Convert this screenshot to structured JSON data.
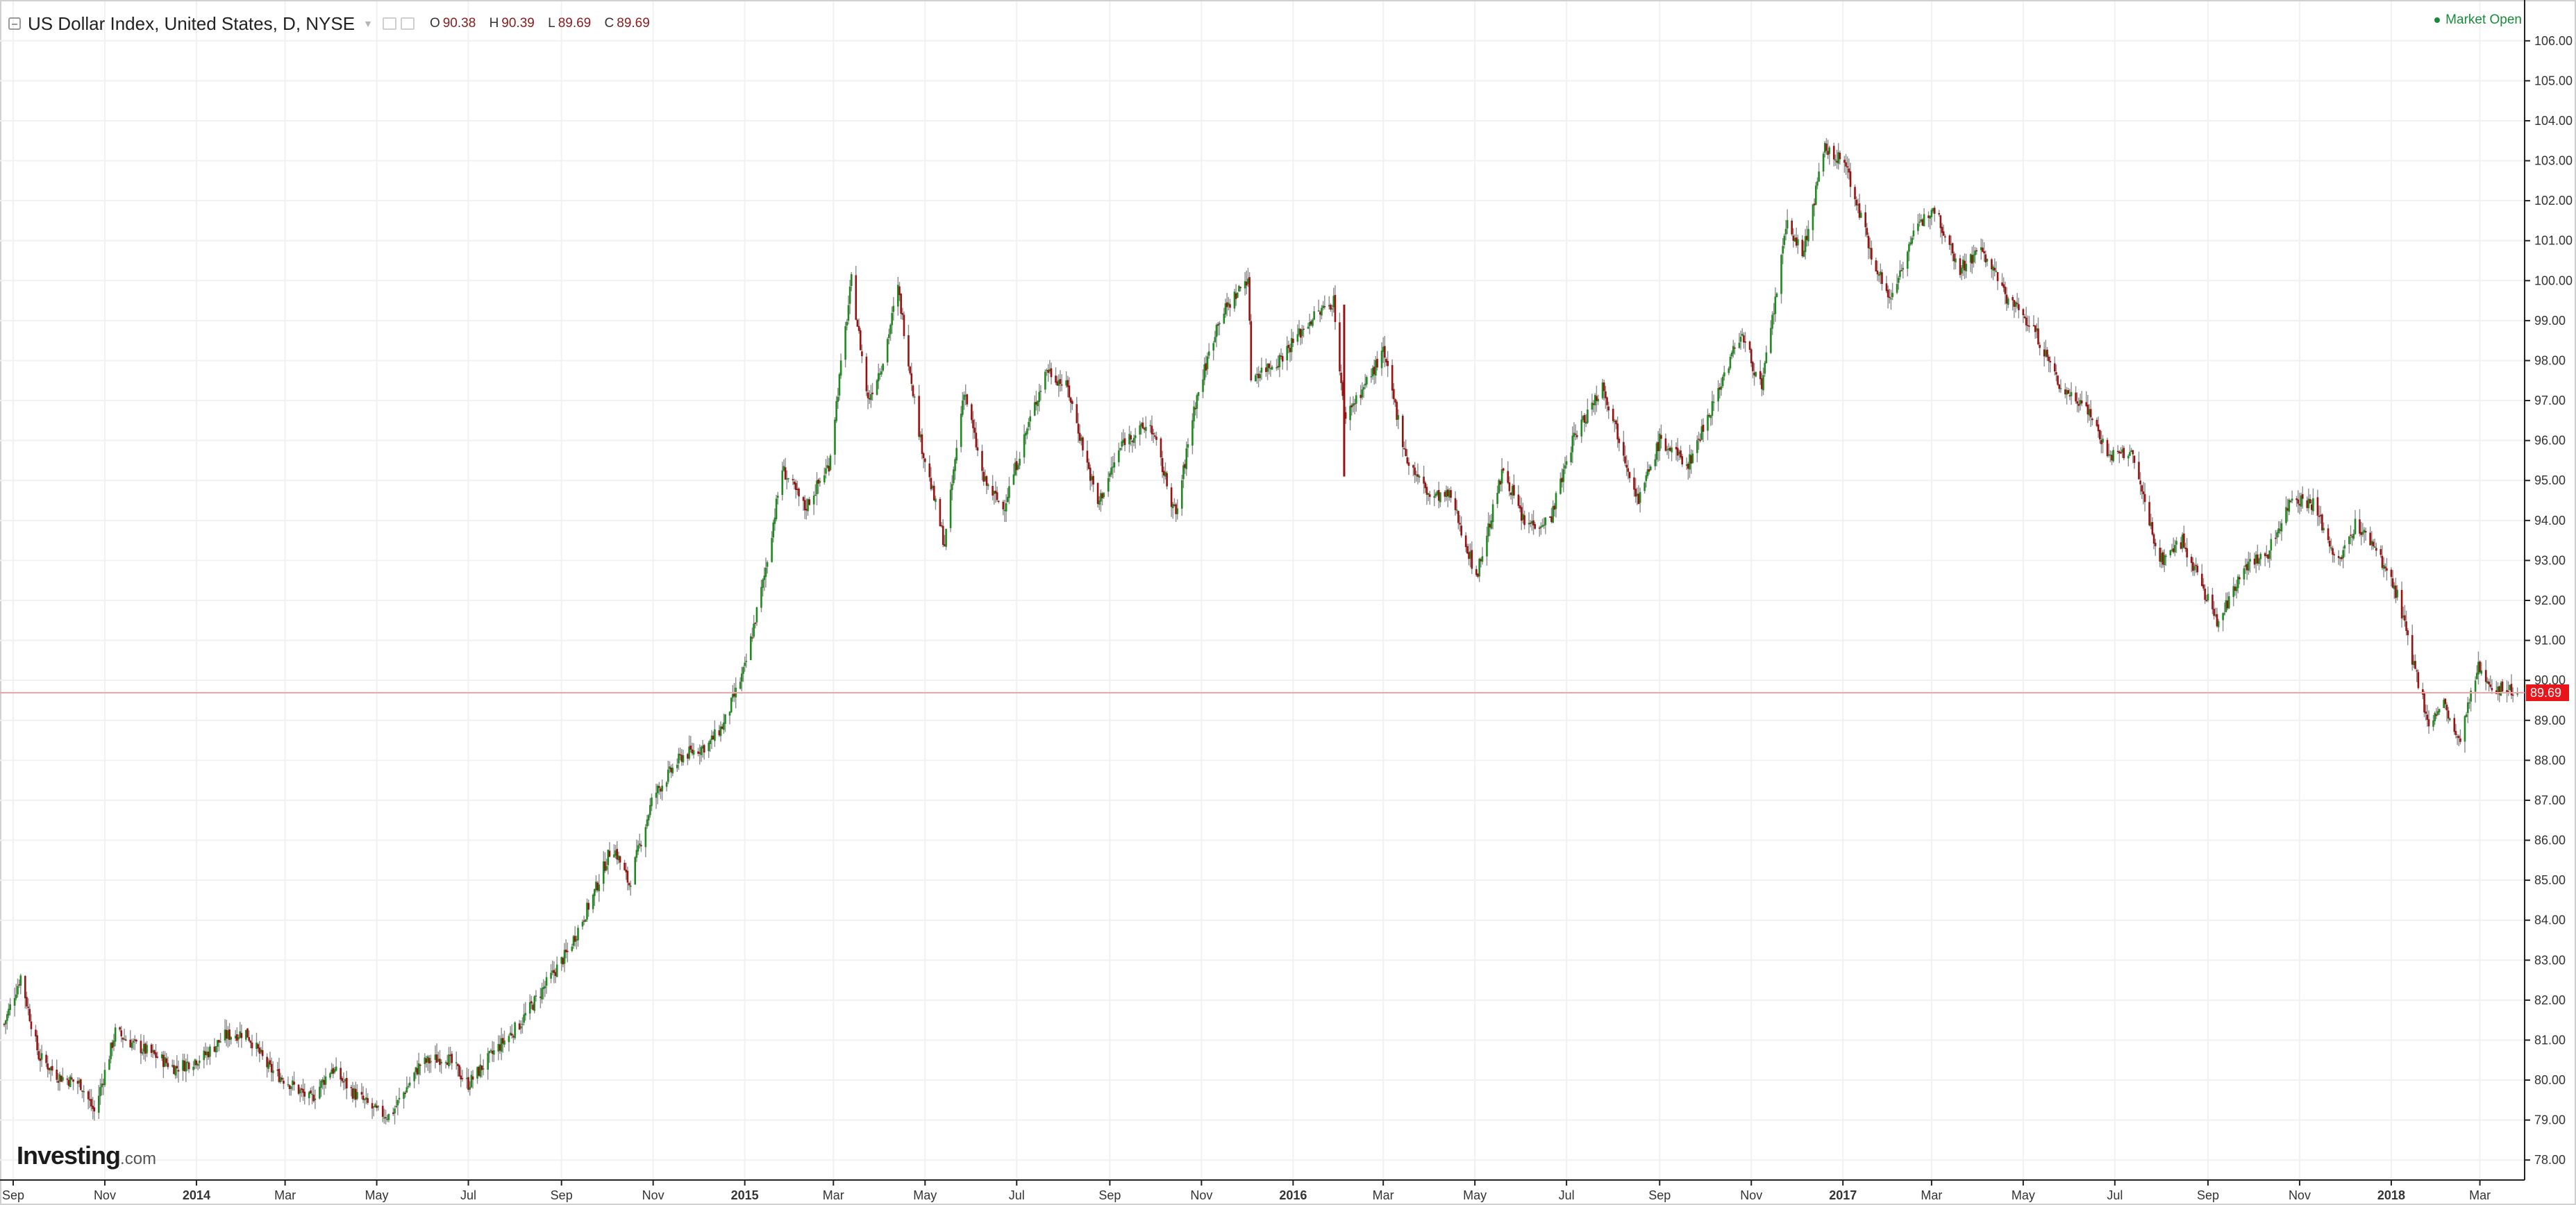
{
  "header": {
    "title": "US Dollar Index, United States, D, NYSE",
    "ohlc": [
      {
        "key": "O",
        "value": "90.38"
      },
      {
        "key": "H",
        "value": "90.39"
      },
      {
        "key": "L",
        "value": "89.69"
      },
      {
        "key": "C",
        "value": "89.69"
      }
    ]
  },
  "status": {
    "market": "Market Open"
  },
  "branding": {
    "logo_main": "Investing",
    "logo_domain": ".com"
  },
  "colors": {
    "up": "#1f8a1f",
    "down": "#9b1111",
    "last_price": "#e8151b",
    "grid": "#f1f1f1",
    "axis": "#222222"
  },
  "chart_data": {
    "type": "candlestick",
    "title": "US Dollar Index, United States, D, NYSE",
    "ylim": [
      77.5,
      106.5
    ],
    "y_ticks": [
      "78.00",
      "79.00",
      "80.00",
      "81.00",
      "82.00",
      "83.00",
      "84.00",
      "85.00",
      "86.00",
      "87.00",
      "88.00",
      "89.00",
      "90.00",
      "91.00",
      "92.00",
      "93.00",
      "94.00",
      "95.00",
      "96.00",
      "97.00",
      "98.00",
      "99.00",
      "100.00",
      "101.00",
      "102.00",
      "103.00",
      "104.00",
      "105.00",
      "106.00"
    ],
    "x_range": [
      "2013-08-26",
      "2018-03-28"
    ],
    "x_ticks": [
      {
        "date": "2013-09-01",
        "label": "Sep"
      },
      {
        "date": "2013-11-01",
        "label": "Nov"
      },
      {
        "date": "2014-01-01",
        "label": "2014"
      },
      {
        "date": "2014-03-01",
        "label": "Mar"
      },
      {
        "date": "2014-05-01",
        "label": "May"
      },
      {
        "date": "2014-07-01",
        "label": "Jul"
      },
      {
        "date": "2014-09-01",
        "label": "Sep"
      },
      {
        "date": "2014-11-01",
        "label": "Nov"
      },
      {
        "date": "2015-01-01",
        "label": "2015"
      },
      {
        "date": "2015-03-01",
        "label": "Mar"
      },
      {
        "date": "2015-05-01",
        "label": "May"
      },
      {
        "date": "2015-07-01",
        "label": "Jul"
      },
      {
        "date": "2015-09-01",
        "label": "Sep"
      },
      {
        "date": "2015-11-01",
        "label": "Nov"
      },
      {
        "date": "2016-01-01",
        "label": "2016"
      },
      {
        "date": "2016-03-01",
        "label": "Mar"
      },
      {
        "date": "2016-05-01",
        "label": "May"
      },
      {
        "date": "2016-07-01",
        "label": "Jul"
      },
      {
        "date": "2016-09-01",
        "label": "Sep"
      },
      {
        "date": "2016-11-01",
        "label": "Nov"
      },
      {
        "date": "2017-01-01",
        "label": "2017"
      },
      {
        "date": "2017-03-01",
        "label": "Mar"
      },
      {
        "date": "2017-05-01",
        "label": "May"
      },
      {
        "date": "2017-07-01",
        "label": "Jul"
      },
      {
        "date": "2017-09-01",
        "label": "Sep"
      },
      {
        "date": "2017-11-01",
        "label": "Nov"
      },
      {
        "date": "2018-01-01",
        "label": "2018"
      },
      {
        "date": "2018-03-01",
        "label": "Mar"
      }
    ],
    "price_path": [
      [
        "2013-08-26",
        81.4
      ],
      [
        "2013-09-06",
        82.6
      ],
      [
        "2013-09-18",
        80.6
      ],
      [
        "2013-10-01",
        80.1
      ],
      [
        "2013-10-16",
        79.9
      ],
      [
        "2013-10-25",
        79.2
      ],
      [
        "2013-11-08",
        81.2
      ],
      [
        "2013-11-20",
        80.9
      ],
      [
        "2013-12-05",
        80.6
      ],
      [
        "2013-12-18",
        80.3
      ],
      [
        "2014-01-06",
        80.6
      ],
      [
        "2014-01-20",
        81.1
      ],
      [
        "2014-02-03",
        81.2
      ],
      [
        "2014-02-18",
        80.3
      ],
      [
        "2014-03-05",
        79.9
      ],
      [
        "2014-03-18",
        79.5
      ],
      [
        "2014-04-01",
        80.3
      ],
      [
        "2014-04-15",
        79.7
      ],
      [
        "2014-05-01",
        79.2
      ],
      [
        "2014-05-10",
        79.1
      ],
      [
        "2014-05-30",
        80.4
      ],
      [
        "2014-06-16",
        80.6
      ],
      [
        "2014-07-01",
        79.9
      ],
      [
        "2014-07-18",
        80.7
      ],
      [
        "2014-08-04",
        81.4
      ],
      [
        "2014-08-20",
        82.3
      ],
      [
        "2014-09-05",
        83.2
      ],
      [
        "2014-09-22",
        84.6
      ],
      [
        "2014-10-05",
        85.9
      ],
      [
        "2014-10-16",
        84.9
      ],
      [
        "2014-11-01",
        87.1
      ],
      [
        "2014-11-20",
        88.1
      ],
      [
        "2014-12-08",
        88.4
      ],
      [
        "2014-12-18",
        88.9
      ],
      [
        "2015-01-01",
        90.3
      ],
      [
        "2015-01-14",
        92.6
      ],
      [
        "2015-01-26",
        95.3
      ],
      [
        "2015-02-10",
        94.3
      ],
      [
        "2015-02-26",
        95.4
      ],
      [
        "2015-03-13",
        100.0
      ],
      [
        "2015-03-24",
        97.0
      ],
      [
        "2015-04-03",
        98.0
      ],
      [
        "2015-04-13",
        99.8
      ],
      [
        "2015-04-28",
        96.0
      ],
      [
        "2015-05-14",
        93.4
      ],
      [
        "2015-05-27",
        97.3
      ],
      [
        "2015-06-09",
        95.0
      ],
      [
        "2015-06-22",
        94.3
      ],
      [
        "2015-07-08",
        96.3
      ],
      [
        "2015-07-21",
        97.8
      ],
      [
        "2015-08-04",
        97.3
      ],
      [
        "2015-08-24",
        94.4
      ],
      [
        "2015-09-10",
        96.0
      ],
      [
        "2015-09-28",
        96.4
      ],
      [
        "2015-10-15",
        94.1
      ],
      [
        "2015-10-27",
        96.8
      ],
      [
        "2015-11-12",
        99.0
      ],
      [
        "2015-12-02",
        100.1
      ],
      [
        "2015-12-04",
        97.6
      ],
      [
        "2015-12-22",
        98.0
      ],
      [
        "2016-01-12",
        99.0
      ],
      [
        "2016-01-28",
        99.5
      ],
      [
        "2016-02-04",
        96.6
      ],
      [
        "2016-02-18",
        97.4
      ],
      [
        "2016-03-01",
        98.2
      ],
      [
        "2016-03-17",
        95.5
      ],
      [
        "2016-04-01",
        94.6
      ],
      [
        "2016-04-15",
        94.6
      ],
      [
        "2016-05-02",
        92.6
      ],
      [
        "2016-05-20",
        95.3
      ],
      [
        "2016-06-03",
        93.9
      ],
      [
        "2016-06-20",
        94.0
      ],
      [
        "2016-07-05",
        96.0
      ],
      [
        "2016-07-25",
        97.4
      ],
      [
        "2016-08-18",
        94.5
      ],
      [
        "2016-09-01",
        96.0
      ],
      [
        "2016-09-20",
        95.4
      ],
      [
        "2016-10-05",
        96.8
      ],
      [
        "2016-10-25",
        98.7
      ],
      [
        "2016-11-08",
        97.3
      ],
      [
        "2016-11-25",
        101.5
      ],
      [
        "2016-12-05",
        100.6
      ],
      [
        "2016-12-20",
        103.3
      ],
      [
        "2017-01-03",
        102.9
      ],
      [
        "2017-01-18",
        100.9
      ],
      [
        "2017-02-01",
        99.5
      ],
      [
        "2017-02-15",
        101.0
      ],
      [
        "2017-03-02",
        101.9
      ],
      [
        "2017-03-20",
        100.3
      ],
      [
        "2017-04-03",
        100.8
      ],
      [
        "2017-04-20",
        99.6
      ],
      [
        "2017-05-08",
        98.8
      ],
      [
        "2017-05-26",
        97.3
      ],
      [
        "2017-06-12",
        96.9
      ],
      [
        "2017-06-27",
        95.6
      ],
      [
        "2017-07-12",
        95.7
      ],
      [
        "2017-07-31",
        93.0
      ],
      [
        "2017-08-15",
        93.5
      ],
      [
        "2017-09-08",
        91.4
      ],
      [
        "2017-09-25",
        92.9
      ],
      [
        "2017-10-10",
        93.1
      ],
      [
        "2017-10-27",
        94.6
      ],
      [
        "2017-11-10",
        94.4
      ],
      [
        "2017-11-27",
        92.9
      ],
      [
        "2017-12-08",
        93.9
      ],
      [
        "2017-12-22",
        93.3
      ],
      [
        "2018-01-05",
        92.1
      ],
      [
        "2018-01-16",
        90.4
      ],
      [
        "2018-01-26",
        88.9
      ],
      [
        "2018-02-05",
        89.4
      ],
      [
        "2018-02-15",
        88.4
      ],
      [
        "2018-02-28",
        90.3
      ],
      [
        "2018-03-12",
        89.8
      ],
      [
        "2018-03-26",
        89.7
      ]
    ],
    "spikes": [
      {
        "date": "2016-02-04",
        "high": 99.4,
        "low": 95.1
      }
    ],
    "last_price": "89.69",
    "last_value": 89.69
  }
}
